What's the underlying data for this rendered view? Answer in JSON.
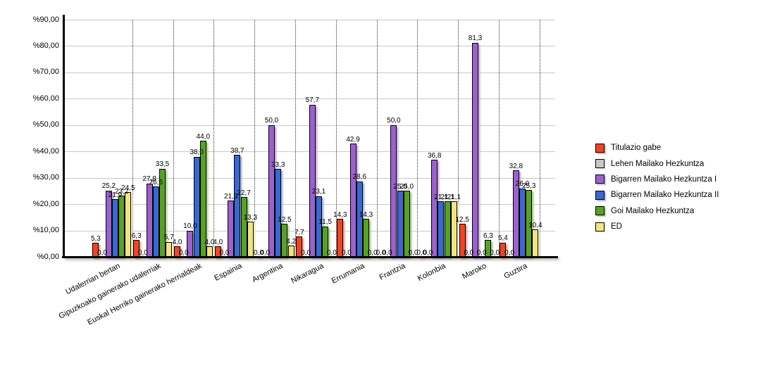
{
  "chart_data": {
    "type": "bar",
    "title": "",
    "xlabel": "",
    "ylabel": "",
    "ylim": [
      0,
      90
    ],
    "y_tick_labels": [
      "%0,00",
      "%10,00",
      "%20,00",
      "%30,00",
      "%40,00",
      "%50,00",
      "%60,00",
      "%70,00",
      "%80,00",
      "%90,00"
    ],
    "grid": "horizontal",
    "legend_position": "right",
    "value_label_decimal": "comma",
    "categories": [
      "Udalerrian bertan",
      "Gipuzkoako gainerako udalerriak",
      "Euskal Herriko gainerako herrialdeak",
      "Espainia",
      "Argentina",
      "Nikaragua",
      "Errumania",
      "Frantzia",
      "Kolonbia",
      "Maroko",
      "Guztira"
    ],
    "series": [
      {
        "name": "Titulazio gabe",
        "color": "#e8472b",
        "shadow_color": "#f5a28f",
        "values": [
          5.3,
          6.3,
          4.0,
          4.0,
          0.0,
          7.7,
          14.3,
          0.0,
          0.0,
          12.5,
          5.4
        ]
      },
      {
        "name": "Lehen Mailako Hezkuntza",
        "color": "#c9c9c9",
        "shadow_color": "#e3e3e3",
        "values": [
          0.0,
          0.0,
          0.0,
          0.0,
          0.0,
          0.0,
          0.0,
          0.0,
          0.0,
          0.0,
          0.0
        ]
      },
      {
        "name": "Bigarren Mailako Hezkuntza I",
        "color": "#9a63c9",
        "shadow_color": "#cbaae6",
        "values": [
          25.2,
          27.8,
          10.0,
          21.3,
          50.0,
          57.7,
          42.9,
          50.0,
          36.8,
          81.3,
          32.8
        ]
      },
      {
        "name": "Bigarren Mailako Hezkuntza II",
        "color": "#3c68cd",
        "shadow_color": "#a0b6ea",
        "values": [
          21.9,
          26.6,
          38.0,
          38.7,
          33.3,
          23.1,
          28.6,
          25.0,
          21.1,
          0.0,
          26.0
        ]
      },
      {
        "name": "Goi Mailako Hezkuntza",
        "color": "#57a02d",
        "shadow_color": "#abd08b",
        "values": [
          23.2,
          33.5,
          44.0,
          22.7,
          12.5,
          11.5,
          14.3,
          25.0,
          21.1,
          6.3,
          25.3
        ]
      },
      {
        "name": "ED",
        "color": "#f0e488",
        "shadow_color": "#f8f1c0",
        "values": [
          24.5,
          5.7,
          4.0,
          13.3,
          4.2,
          0.0,
          0.0,
          0.0,
          21.1,
          0.0,
          10.4
        ]
      }
    ]
  }
}
